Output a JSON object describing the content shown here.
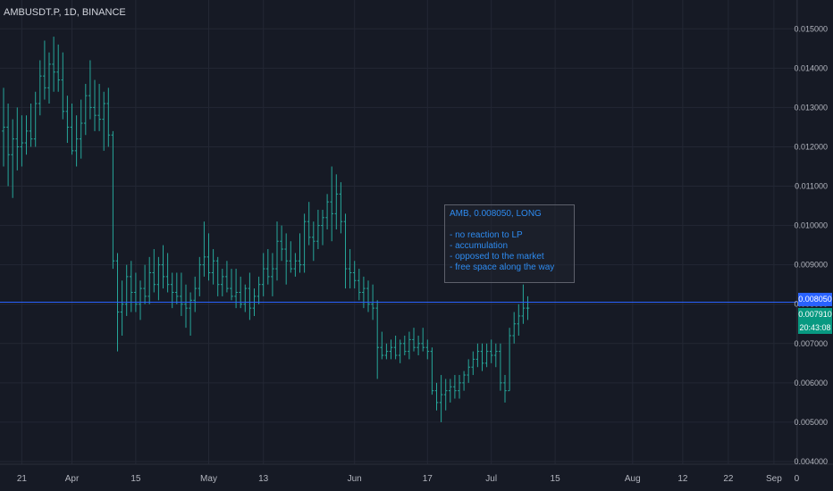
{
  "header": {
    "symbol_label": "AMBUSDT.P, 1D, BINANCE"
  },
  "annotation": {
    "title": "AMB, 0.008050, LONG",
    "lines": [
      "- no reaction to LP",
      "- accumulation",
      "- opposed to the market",
      "- free space along the way"
    ]
  },
  "price_tags": {
    "target": "0.008050",
    "last": "0.007910",
    "countdown": "20:43:08"
  },
  "colors": {
    "background": "#161a25",
    "bars": "#26a69a",
    "target_line": "#2962ff",
    "grid": "#232734",
    "text": "#b2b5be"
  },
  "chart_data": {
    "type": "ohlc",
    "interval": "1D",
    "y_axis": {
      "ylim": [
        0.004,
        0.0158
      ],
      "ticks": [
        "0.004000",
        "0.005000",
        "0.006000",
        "0.007000",
        "0.008000",
        "0.009000",
        "0.010000",
        "0.011000",
        "0.012000",
        "0.013000",
        "0.014000",
        "0.015000"
      ],
      "position": "right"
    },
    "x_axis": {
      "ticks": [
        {
          "label": "21",
          "bar": 4
        },
        {
          "label": "Apr",
          "bar": 15
        },
        {
          "label": "15",
          "bar": 29
        },
        {
          "label": "May",
          "bar": 45
        },
        {
          "label": "13",
          "bar": 57
        },
        {
          "label": "Jun",
          "bar": 77
        },
        {
          "label": "17",
          "bar": 93
        },
        {
          "label": "Jul",
          "bar": 107
        },
        {
          "label": "15",
          "bar": 121
        },
        {
          "label": "Aug",
          "bar": 138
        },
        {
          "label": "12",
          "bar": 149
        },
        {
          "label": "22",
          "bar": 159
        },
        {
          "label": "Sep",
          "bar": 169
        },
        {
          "label": "0",
          "bar": 174
        }
      ],
      "grid": true
    },
    "horizontal_line": 0.00805,
    "ohlc": [
      [
        0.0124,
        0.0135,
        0.0115,
        0.0125
      ],
      [
        0.0125,
        0.0131,
        0.011,
        0.0118
      ],
      [
        0.0118,
        0.0127,
        0.0107,
        0.0122
      ],
      [
        0.0122,
        0.013,
        0.0114,
        0.012
      ],
      [
        0.012,
        0.0128,
        0.0115,
        0.0121
      ],
      [
        0.0121,
        0.0128,
        0.0118,
        0.0124
      ],
      [
        0.0124,
        0.0131,
        0.012,
        0.0122
      ],
      [
        0.0122,
        0.0134,
        0.012,
        0.0131
      ],
      [
        0.0131,
        0.0142,
        0.0128,
        0.0138
      ],
      [
        0.0138,
        0.0147,
        0.0132,
        0.0135
      ],
      [
        0.0135,
        0.0144,
        0.0131,
        0.0141
      ],
      [
        0.0141,
        0.0148,
        0.0134,
        0.0139
      ],
      [
        0.0139,
        0.0146,
        0.0134,
        0.0137
      ],
      [
        0.0137,
        0.0144,
        0.0127,
        0.0129
      ],
      [
        0.0129,
        0.0133,
        0.0121,
        0.0125
      ],
      [
        0.0125,
        0.0131,
        0.0118,
        0.0119
      ],
      [
        0.0119,
        0.0128,
        0.0115,
        0.0122
      ],
      [
        0.0122,
        0.0132,
        0.0117,
        0.0126
      ],
      [
        0.0126,
        0.0136,
        0.0123,
        0.0133
      ],
      [
        0.0133,
        0.0142,
        0.0127,
        0.013
      ],
      [
        0.013,
        0.0137,
        0.0124,
        0.0128
      ],
      [
        0.0128,
        0.0136,
        0.0124,
        0.0127
      ],
      [
        0.0127,
        0.0134,
        0.0119,
        0.0131
      ],
      [
        0.0131,
        0.0135,
        0.012,
        0.0123
      ],
      [
        0.0123,
        0.0124,
        0.0089,
        0.0091
      ],
      [
        0.0091,
        0.0093,
        0.0068,
        0.0078
      ],
      [
        0.0078,
        0.0086,
        0.0072,
        0.008
      ],
      [
        0.008,
        0.009,
        0.0077,
        0.0087
      ],
      [
        0.0087,
        0.0091,
        0.0078,
        0.0083
      ],
      [
        0.0083,
        0.0088,
        0.0078,
        0.008
      ],
      [
        0.008,
        0.0086,
        0.0076,
        0.0084
      ],
      [
        0.0084,
        0.009,
        0.008,
        0.0082
      ],
      [
        0.0082,
        0.0092,
        0.008,
        0.0088
      ],
      [
        0.0088,
        0.0094,
        0.0083,
        0.0085
      ],
      [
        0.0085,
        0.0092,
        0.0081,
        0.009
      ],
      [
        0.009,
        0.0095,
        0.0084,
        0.0087
      ],
      [
        0.0087,
        0.0093,
        0.0083,
        0.0085
      ],
      [
        0.0085,
        0.0088,
        0.0079,
        0.0083
      ],
      [
        0.0083,
        0.0088,
        0.008,
        0.0082
      ],
      [
        0.0082,
        0.0088,
        0.0077,
        0.008
      ],
      [
        0.008,
        0.0085,
        0.0074,
        0.0079
      ],
      [
        0.0079,
        0.0083,
        0.0072,
        0.0081
      ],
      [
        0.0081,
        0.0087,
        0.0078,
        0.0084
      ],
      [
        0.0084,
        0.0092,
        0.0082,
        0.009
      ],
      [
        0.009,
        0.0101,
        0.0087,
        0.0092
      ],
      [
        0.0092,
        0.0098,
        0.0086,
        0.0088
      ],
      [
        0.0088,
        0.0094,
        0.0085,
        0.0091
      ],
      [
        0.0091,
        0.0092,
        0.0082,
        0.0085
      ],
      [
        0.0085,
        0.0089,
        0.0082,
        0.0087
      ],
      [
        0.0087,
        0.0091,
        0.0083,
        0.0084
      ],
      [
        0.0084,
        0.0089,
        0.0081,
        0.0082
      ],
      [
        0.0082,
        0.0089,
        0.0079,
        0.0083
      ],
      [
        0.0083,
        0.0087,
        0.0079,
        0.008
      ],
      [
        0.008,
        0.0085,
        0.0078,
        0.0084
      ],
      [
        0.0084,
        0.0088,
        0.0076,
        0.0079
      ],
      [
        0.0079,
        0.0084,
        0.0077,
        0.0082
      ],
      [
        0.0082,
        0.0087,
        0.008,
        0.0085
      ],
      [
        0.0085,
        0.0093,
        0.0082,
        0.0089
      ],
      [
        0.0089,
        0.0094,
        0.0085,
        0.0087
      ],
      [
        0.0087,
        0.0093,
        0.0082,
        0.0089
      ],
      [
        0.0089,
        0.0101,
        0.0086,
        0.0096
      ],
      [
        0.0096,
        0.01,
        0.0091,
        0.0094
      ],
      [
        0.0094,
        0.0098,
        0.0085,
        0.0091
      ],
      [
        0.0091,
        0.0096,
        0.0088,
        0.0089
      ],
      [
        0.0089,
        0.0093,
        0.0087,
        0.0091
      ],
      [
        0.0091,
        0.0098,
        0.0088,
        0.009
      ],
      [
        0.009,
        0.0103,
        0.0088,
        0.0101
      ],
      [
        0.0101,
        0.0106,
        0.0095,
        0.0097
      ],
      [
        0.0097,
        0.0101,
        0.0091,
        0.0096
      ],
      [
        0.0096,
        0.0104,
        0.0094,
        0.01
      ],
      [
        0.01,
        0.0104,
        0.0095,
        0.0102
      ],
      [
        0.0102,
        0.0108,
        0.0099,
        0.0106
      ],
      [
        0.0106,
        0.0115,
        0.0096,
        0.0103
      ],
      [
        0.0103,
        0.0113,
        0.0099,
        0.0108
      ],
      [
        0.0108,
        0.0111,
        0.0098,
        0.0101
      ],
      [
        0.0101,
        0.0103,
        0.0084,
        0.0089
      ],
      [
        0.0089,
        0.0094,
        0.0084,
        0.0088
      ],
      [
        0.0088,
        0.0091,
        0.0084,
        0.0086
      ],
      [
        0.0086,
        0.0089,
        0.0081,
        0.0083
      ],
      [
        0.0083,
        0.0087,
        0.0079,
        0.0084
      ],
      [
        0.0084,
        0.0086,
        0.0078,
        0.008
      ],
      [
        0.008,
        0.0085,
        0.0076,
        0.0079
      ],
      [
        0.0079,
        0.0081,
        0.0061,
        0.0069
      ],
      [
        0.0069,
        0.0073,
        0.0066,
        0.0067
      ],
      [
        0.0067,
        0.007,
        0.0066,
        0.0068
      ],
      [
        0.0068,
        0.0071,
        0.0066,
        0.0069
      ],
      [
        0.0069,
        0.0072,
        0.0066,
        0.0067
      ],
      [
        0.0067,
        0.0071,
        0.0065,
        0.007
      ],
      [
        0.007,
        0.0072,
        0.0067,
        0.0068
      ],
      [
        0.0068,
        0.0073,
        0.0066,
        0.0071
      ],
      [
        0.0071,
        0.0074,
        0.0068,
        0.0069
      ],
      [
        0.0069,
        0.0072,
        0.0067,
        0.007
      ],
      [
        0.007,
        0.0074,
        0.0068,
        0.0069
      ],
      [
        0.0069,
        0.0071,
        0.0066,
        0.0068
      ],
      [
        0.0068,
        0.0069,
        0.0057,
        0.0058
      ],
      [
        0.0058,
        0.006,
        0.0053,
        0.0055
      ],
      [
        0.0055,
        0.0062,
        0.005,
        0.0057
      ],
      [
        0.0057,
        0.0061,
        0.0053,
        0.0058
      ],
      [
        0.0058,
        0.0061,
        0.0055,
        0.0059
      ],
      [
        0.0059,
        0.0062,
        0.0056,
        0.0058
      ],
      [
        0.0058,
        0.0062,
        0.0056,
        0.006
      ],
      [
        0.006,
        0.0063,
        0.0058,
        0.0062
      ],
      [
        0.0062,
        0.0066,
        0.006,
        0.0064
      ],
      [
        0.0064,
        0.0068,
        0.0062,
        0.0066
      ],
      [
        0.0066,
        0.007,
        0.0064,
        0.0068
      ],
      [
        0.0068,
        0.007,
        0.0063,
        0.0065
      ],
      [
        0.0065,
        0.007,
        0.0064,
        0.0068
      ],
      [
        0.0068,
        0.0071,
        0.0065,
        0.0067
      ],
      [
        0.0067,
        0.007,
        0.0064,
        0.0068
      ],
      [
        0.0068,
        0.007,
        0.0058,
        0.006
      ],
      [
        0.006,
        0.0062,
        0.0055,
        0.0058
      ],
      [
        0.0058,
        0.0074,
        0.0058,
        0.0072
      ],
      [
        0.0072,
        0.0078,
        0.007,
        0.0075
      ],
      [
        0.0075,
        0.008,
        0.0072,
        0.0077
      ],
      [
        0.0077,
        0.0085,
        0.0075,
        0.0079
      ],
      [
        0.0079,
        0.0082,
        0.0076,
        0.0079
      ]
    ]
  }
}
